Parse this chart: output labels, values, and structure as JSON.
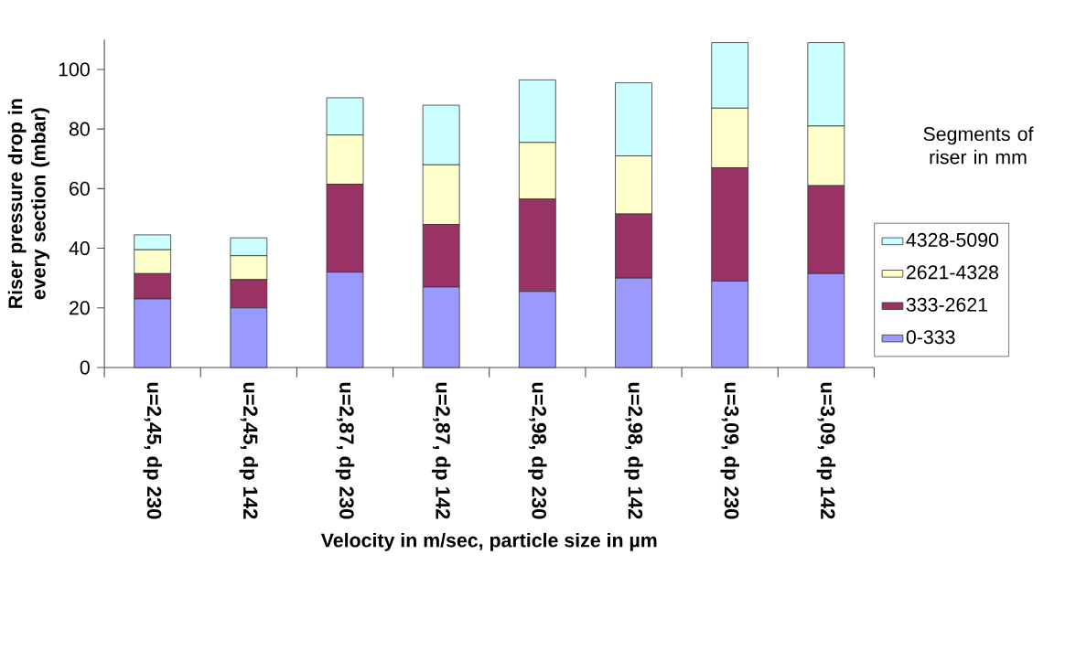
{
  "chart_data": {
    "type": "bar",
    "stacked": true,
    "xlabel": "Velocity in m/sec, particle size in µm",
    "ylabel": "Riser pressure drop in every section (mbar)",
    "legend_title": "Segments of riser in mm",
    "categories": [
      "u=2,45, dp 230",
      "u=2,45, dp 142",
      "u=2,87, dp 230",
      "u=2,87, dp 142",
      "u=2,98, dp 230",
      "u=2,98, dp 142",
      "u=3,09, dp 230",
      "u=3,09, dp 142"
    ],
    "series": [
      {
        "name": "0-333",
        "color": "#9999ff",
        "values": [
          23,
          20,
          32,
          27,
          25.5,
          30,
          29,
          31.5
        ]
      },
      {
        "name": "333-2621",
        "color": "#993366",
        "values": [
          8.5,
          9.5,
          29.5,
          21,
          31,
          21.5,
          38,
          29.5
        ]
      },
      {
        "name": "2621-4328",
        "color": "#ffffcc",
        "values": [
          8,
          8,
          16.5,
          20,
          19,
          19.5,
          20,
          20
        ]
      },
      {
        "name": "4328-5090",
        "color": "#ccffff",
        "values": [
          5,
          6,
          12.5,
          20,
          21,
          24.5,
          22,
          28
        ]
      }
    ],
    "ylim": [
      0,
      110
    ],
    "yticks": [
      0,
      20,
      40,
      60,
      80,
      100
    ],
    "grid": false,
    "legend": "right"
  }
}
